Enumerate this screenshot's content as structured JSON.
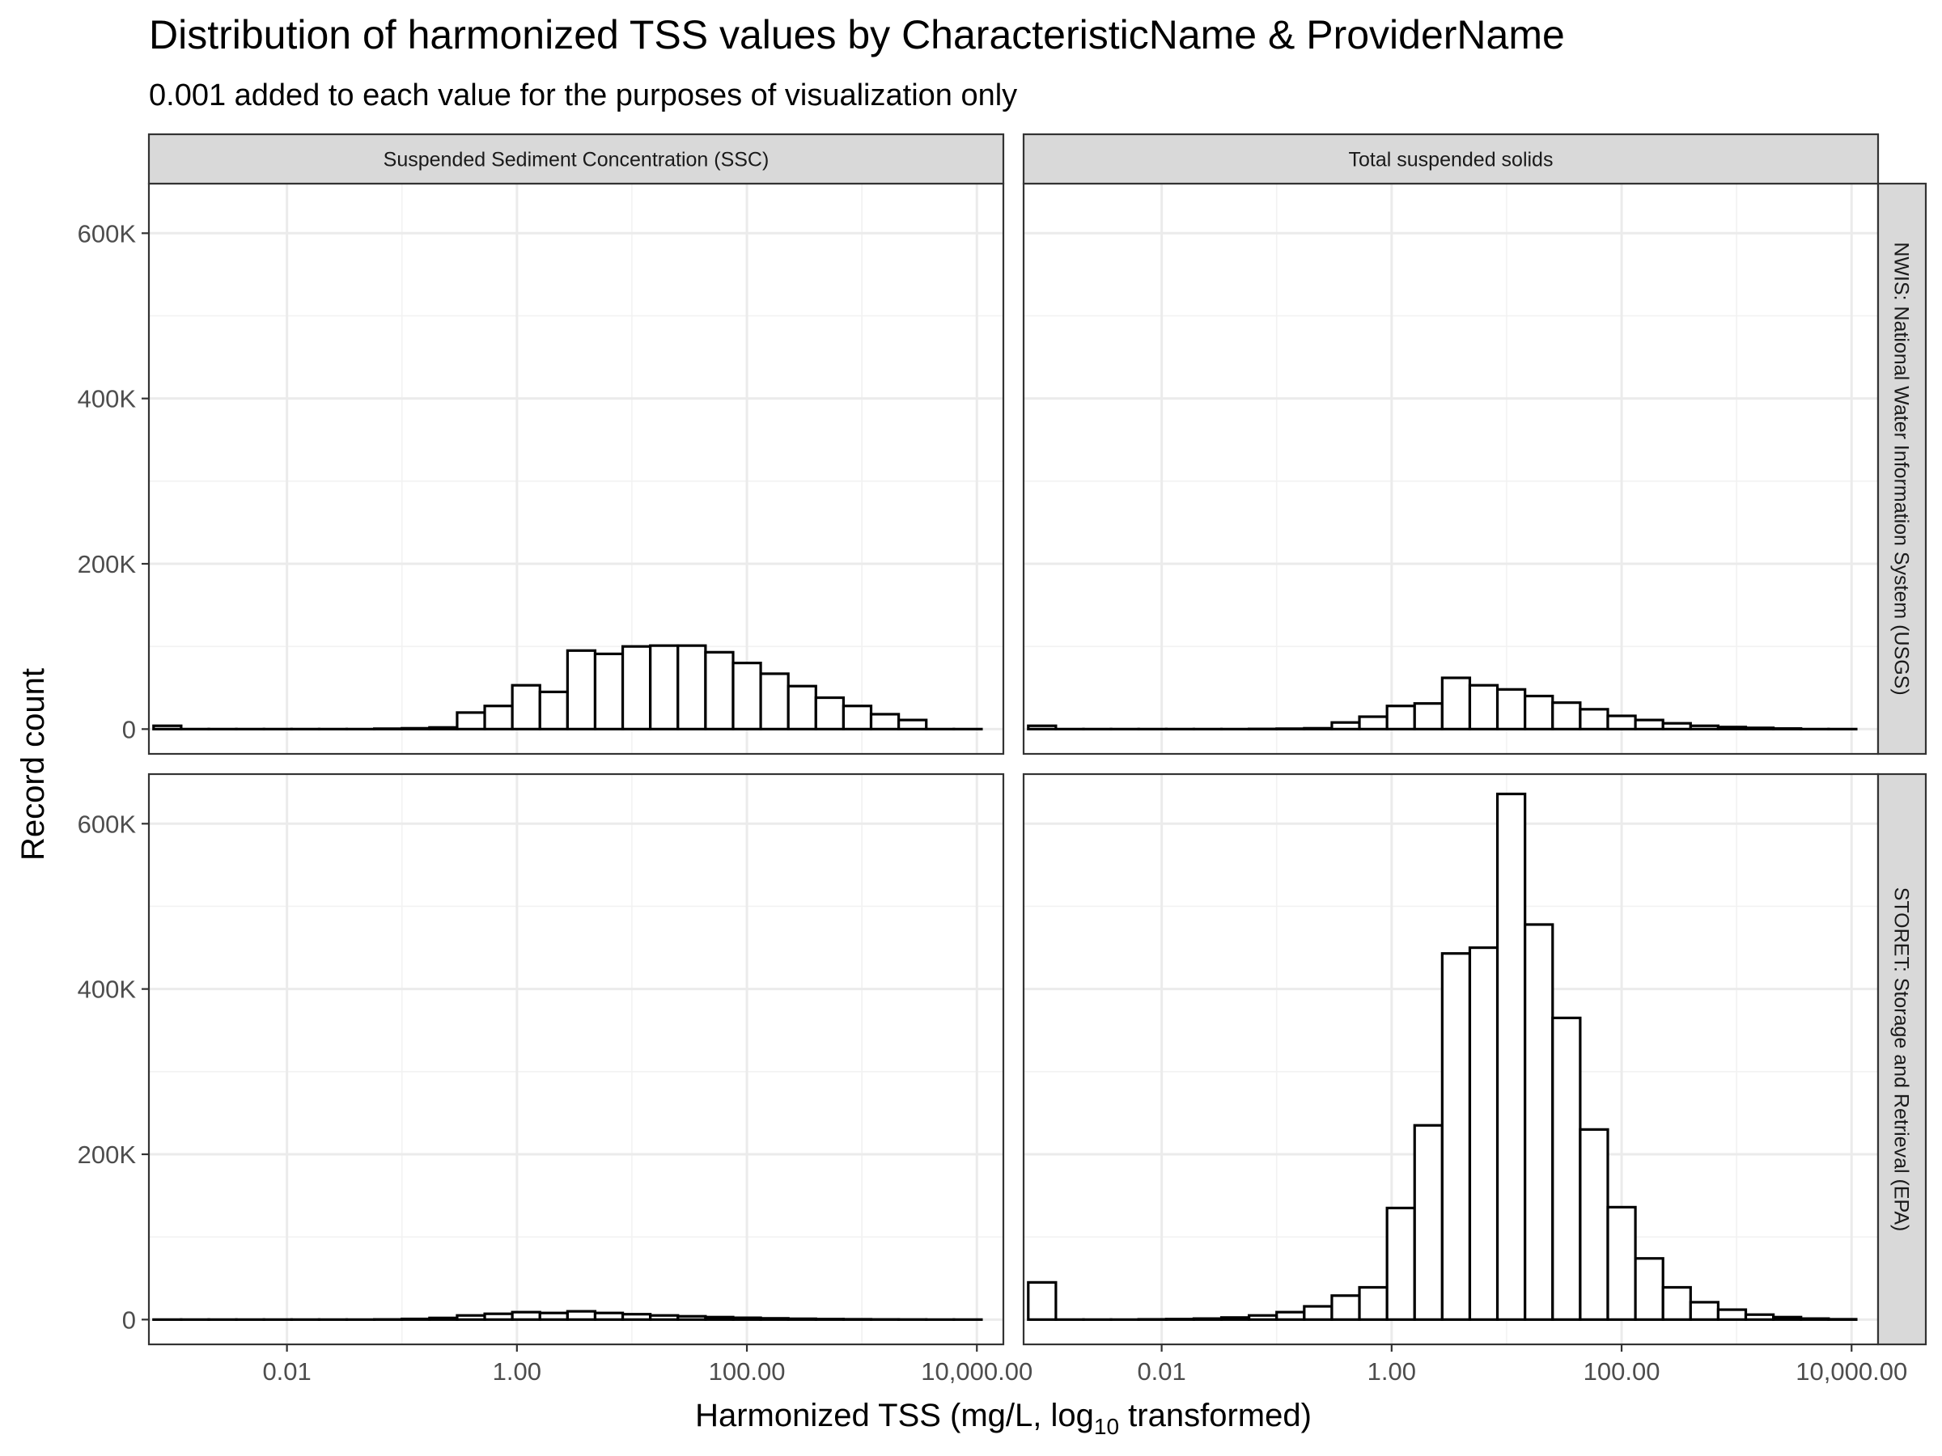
{
  "chart_data": {
    "type": "bar",
    "title": "Distribution of harmonized TSS values by CharacteristicName & ProviderName",
    "subtitle": "0.001 added to each value for the purposes of visualization only",
    "xlabel": "Harmonized TSS (mg/L,  log",
    "xlabel_subscript": "10",
    "xlabel_suffix": " transformed)",
    "ylabel": "Record count",
    "x_scale": "log10",
    "xlim": [
      0.00063,
      17000
    ],
    "ylim": [
      -30000,
      660000
    ],
    "x_ticks": [
      {
        "value": 0.01,
        "label": "0.01"
      },
      {
        "value": 1,
        "label": "1.00"
      },
      {
        "value": 100,
        "label": "100.00"
      },
      {
        "value": 10000,
        "label": "10,000.00"
      }
    ],
    "y_ticks": [
      {
        "value": 0,
        "label": "0"
      },
      {
        "value": 200000,
        "label": "200K"
      },
      {
        "value": 400000,
        "label": "400K"
      },
      {
        "value": 600000,
        "label": "600K"
      }
    ],
    "grid": true,
    "column_strips": [
      "Suspended Sediment Concentration (SSC)",
      "Total suspended solids"
    ],
    "row_strips": [
      "NWIS: National Water Information System (USGS)",
      "STORET: Storage and Retrieval (EPA)"
    ],
    "bin_edges_log10": [
      -3.16,
      -2.92,
      -2.68,
      -2.44,
      -2.2,
      -1.96,
      -1.72,
      -1.48,
      -1.24,
      -1.0,
      -0.76,
      -0.52,
      -0.28,
      -0.04,
      0.2,
      0.44,
      0.68,
      0.92,
      1.16,
      1.4,
      1.64,
      1.88,
      2.12,
      2.36,
      2.6,
      2.84,
      3.08,
      3.32,
      3.56,
      3.8,
      4.04
    ],
    "panels": [
      {
        "row": 0,
        "col": 0,
        "values": [
          4000,
          0,
          0,
          0,
          0,
          0,
          0,
          0,
          500,
          1000,
          2000,
          20000,
          28000,
          53000,
          45000,
          95000,
          91000,
          100000,
          101000,
          101000,
          93000,
          80000,
          67000,
          52000,
          38000,
          28000,
          18000,
          11000,
          0,
          0
        ]
      },
      {
        "row": 0,
        "col": 1,
        "values": [
          4000,
          0,
          0,
          0,
          0,
          0,
          0,
          0,
          200,
          500,
          1000,
          8000,
          15000,
          28000,
          31000,
          62000,
          53000,
          48000,
          40000,
          32000,
          24000,
          16000,
          11000,
          7000,
          4000,
          2500,
          1500,
          700,
          0,
          0
        ]
      },
      {
        "row": 1,
        "col": 0,
        "values": [
          0,
          0,
          0,
          0,
          0,
          0,
          0,
          0,
          200,
          800,
          2000,
          5000,
          7000,
          9000,
          8000,
          10000,
          8000,
          6500,
          5000,
          4000,
          3000,
          2200,
          1500,
          1000,
          600,
          400,
          200,
          100,
          0,
          0
        ]
      },
      {
        "row": 1,
        "col": 1,
        "values": [
          45000,
          0,
          0,
          0,
          300,
          600,
          1200,
          2500,
          5000,
          9000,
          16000,
          29000,
          39000,
          135000,
          235000,
          443000,
          450000,
          636000,
          478000,
          365000,
          230000,
          136000,
          74000,
          39000,
          21000,
          12000,
          6000,
          3000,
          1200,
          400
        ]
      }
    ]
  }
}
